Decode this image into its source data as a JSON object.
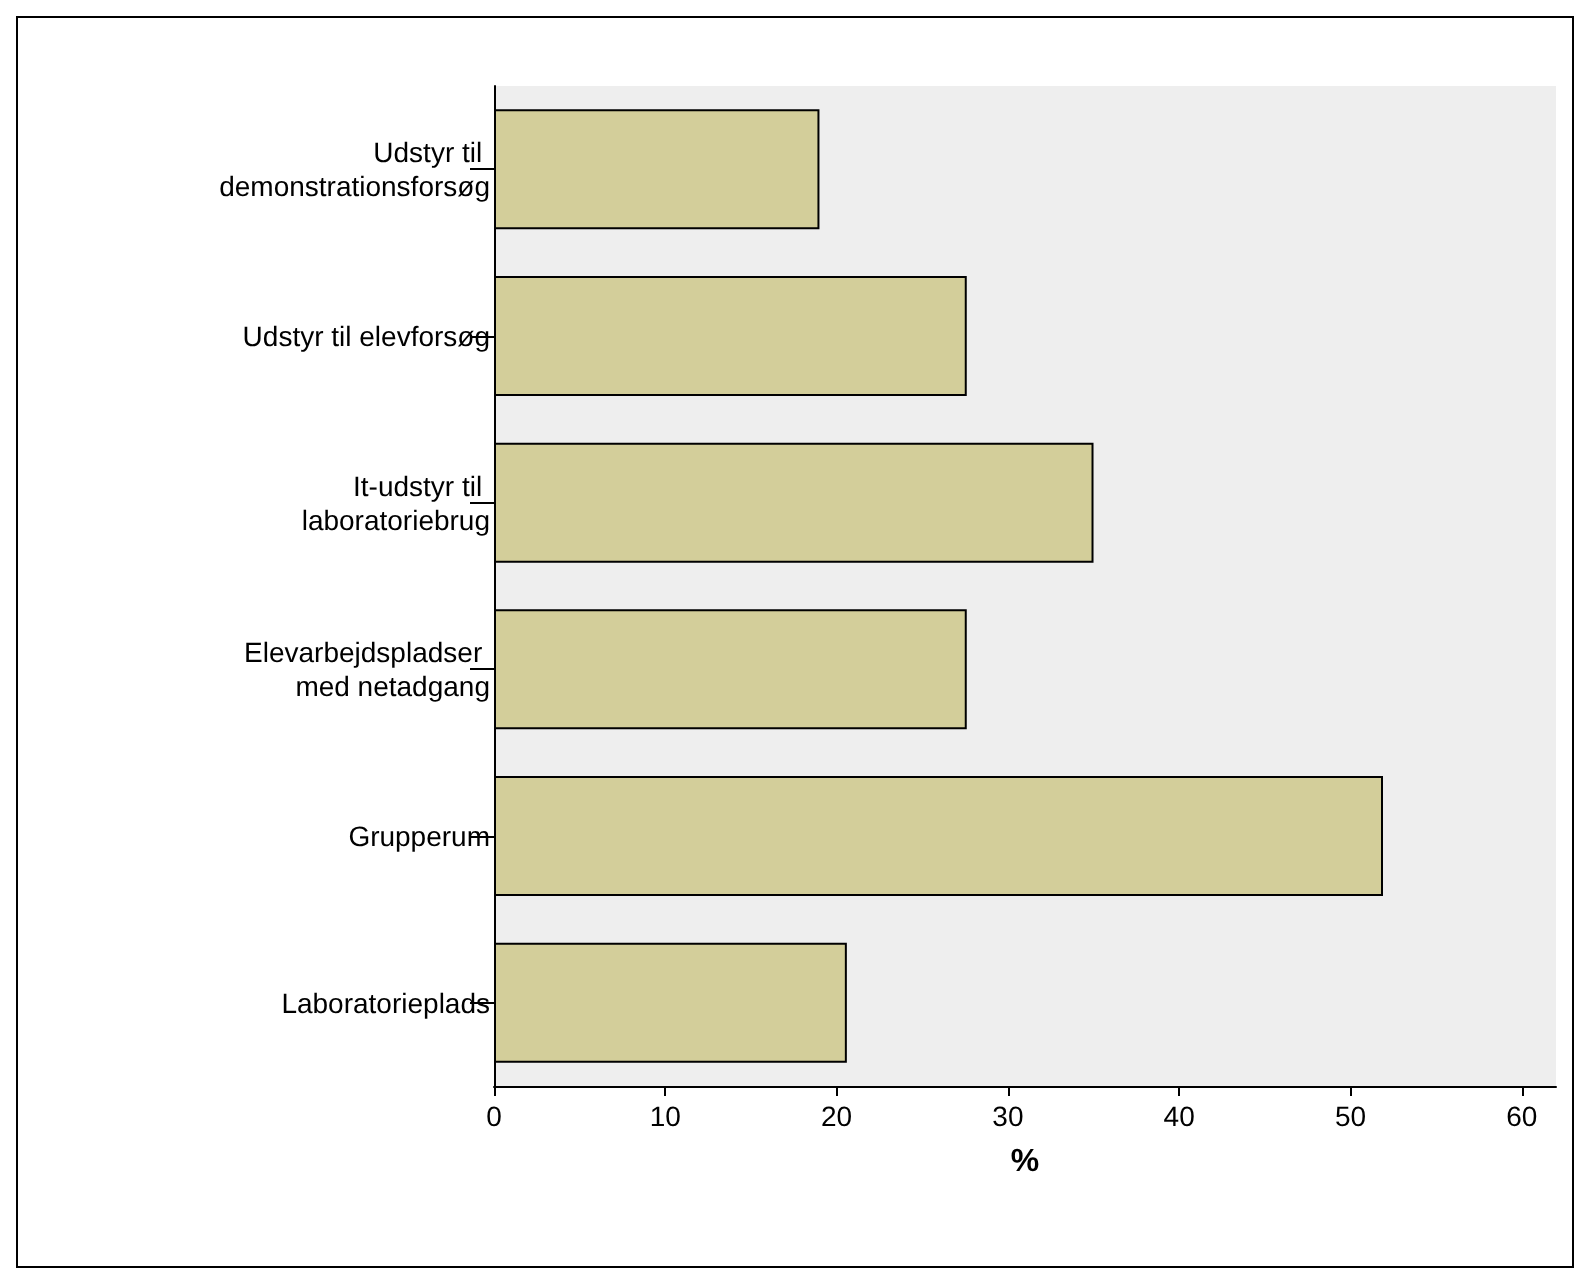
{
  "chart_data": {
    "type": "bar",
    "orientation": "horizontal",
    "xlabel": "%",
    "categories": [
      "Udstyr til demonstrationsforsøg",
      "Udstyr til elevforsøg",
      "It-udstyr til laboratoriebrug",
      "Elevarbejdspladser med netadgang",
      "Grupperum",
      "Laboratorieplads"
    ],
    "values": [
      19.0,
      27.6,
      35.0,
      27.6,
      51.9,
      20.6
    ],
    "color": "#d3ce9a",
    "xlim": [
      0,
      62
    ],
    "xticks": [
      0,
      10,
      20,
      30,
      40,
      50,
      60
    ],
    "grid": false
  }
}
